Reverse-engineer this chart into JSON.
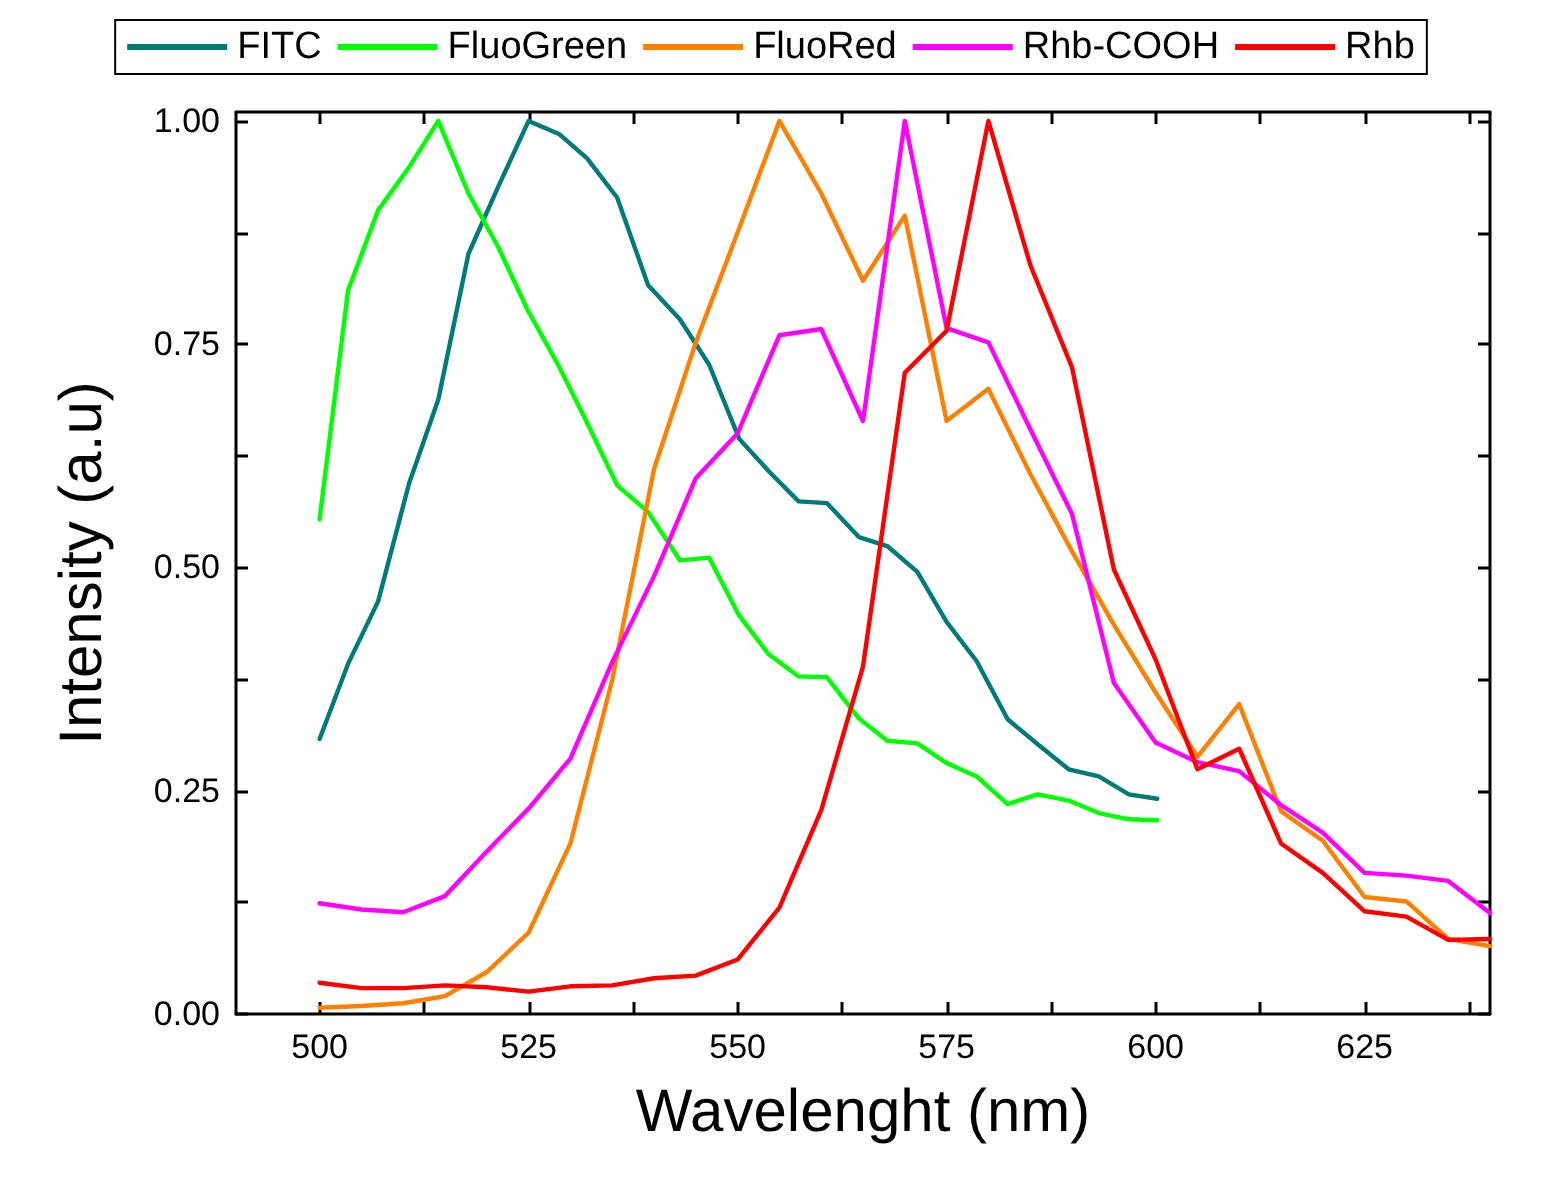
{
  "chart_data": {
    "type": "line",
    "xlabel": "Wavelenght (nm)",
    "ylabel": "Intensity (a.u)",
    "xlim": [
      490,
      640
    ],
    "xticks": [
      500,
      {
        "value": 512.5,
        "label": null
      },
      525,
      {
        "value": 537.5,
        "label": null
      },
      550,
      {
        "value": 562.5,
        "label": null
      },
      575,
      {
        "value": 587.5,
        "label": null
      },
      600,
      {
        "value": 612.5,
        "label": null
      },
      625,
      {
        "value": 637.5,
        "label": null
      }
    ],
    "ylim": [
      0,
      1.01
    ],
    "yticks": [
      {
        "value": 0,
        "label": "0.00"
      },
      {
        "value": 0.125,
        "label": null
      },
      {
        "value": 0.25,
        "label": "0.25"
      },
      {
        "value": 0.375,
        "label": null
      },
      {
        "value": 0.5,
        "label": "0.50"
      },
      {
        "value": 0.625,
        "label": null
      },
      {
        "value": 0.75,
        "label": "0.75"
      },
      {
        "value": 0.875,
        "label": null
      },
      {
        "value": 1,
        "label": "1.00"
      }
    ],
    "grid": false,
    "legend": "top",
    "marker": "none",
    "line_style": "solid",
    "series": [
      {
        "name": "FITC",
        "color": "#007b7b",
        "x": [
          500,
          503.4,
          507,
          510.7,
          514.2,
          517.8,
          521.3,
          525,
          528.7,
          532,
          535.6,
          539.3,
          543.1,
          546.6,
          550.2,
          553.7,
          557.3,
          560.7,
          564.5,
          567.9,
          571.5,
          575,
          578.6,
          582.3,
          585.9,
          589.6,
          593.2,
          596.8,
          600.2
        ],
        "values": [
          0.308,
          0.392,
          0.462,
          0.594,
          0.688,
          0.851,
          0.925,
          1.0,
          0.985,
          0.958,
          0.914,
          0.816,
          0.778,
          0.727,
          0.644,
          0.608,
          0.574,
          0.572,
          0.534,
          0.524,
          0.495,
          0.439,
          0.395,
          0.33,
          0.302,
          0.274,
          0.266,
          0.246,
          0.241
        ]
      },
      {
        "name": "FluoGreen",
        "color": "#00ff00",
        "x": [
          500,
          503.4,
          507,
          510.7,
          514.2,
          517.8,
          521.3,
          524.9,
          528.7,
          532,
          535.6,
          539.3,
          543.1,
          546.6,
          550.2,
          553.7,
          557.3,
          560.7,
          564.5,
          567.9,
          571.5,
          575,
          578.6,
          582.3,
          585.9,
          589.6,
          593.2,
          596.8,
          600.2
        ],
        "values": [
          0.554,
          0.81,
          0.9,
          0.948,
          1.0,
          0.919,
          0.86,
          0.788,
          0.724,
          0.662,
          0.592,
          0.562,
          0.508,
          0.511,
          0.446,
          0.403,
          0.378,
          0.377,
          0.331,
          0.306,
          0.303,
          0.281,
          0.266,
          0.235,
          0.246,
          0.239,
          0.225,
          0.218,
          0.217
        ]
      },
      {
        "name": "FluoRed",
        "color": "#ff8000",
        "x": [
          500,
          505,
          510,
          515,
          520,
          525,
          530,
          535,
          540,
          545,
          550,
          555,
          560,
          565,
          570,
          575,
          580,
          585,
          590,
          595,
          600,
          605,
          610,
          615,
          620,
          625,
          630,
          635,
          640
        ],
        "values": [
          0.007,
          0.009,
          0.012,
          0.02,
          0.047,
          0.091,
          0.191,
          0.374,
          0.61,
          0.752,
          0.875,
          1.0,
          0.919,
          0.821,
          0.894,
          0.664,
          0.7,
          0.605,
          0.518,
          0.436,
          0.36,
          0.288,
          0.347,
          0.227,
          0.194,
          0.131,
          0.126,
          0.084,
          0.076
        ]
      },
      {
        "name": "Rhb-COOH",
        "color": "#ff00ff",
        "x": [
          500,
          505,
          510,
          515,
          520,
          525,
          530,
          535,
          540,
          545,
          550,
          555,
          560,
          565,
          570,
          575,
          580,
          585,
          590,
          595,
          600,
          605,
          610,
          615,
          620,
          625,
          630,
          635,
          640
        ],
        "values": [
          0.124,
          0.117,
          0.114,
          0.132,
          0.182,
          0.23,
          0.286,
          0.394,
          0.49,
          0.6,
          0.65,
          0.76,
          0.767,
          0.664,
          1.0,
          0.768,
          0.752,
          0.655,
          0.56,
          0.371,
          0.304,
          0.282,
          0.272,
          0.234,
          0.203,
          0.158,
          0.155,
          0.149,
          0.113
        ]
      },
      {
        "name": "Rhb",
        "color": "#ff0000",
        "x": [
          500,
          505,
          510,
          515,
          520,
          525,
          530,
          535,
          540,
          545,
          550,
          555,
          560,
          565,
          570,
          575,
          580,
          585,
          590,
          595,
          600,
          605,
          610,
          615,
          620,
          625,
          630,
          635,
          640
        ],
        "values": [
          0.035,
          0.029,
          0.029,
          0.032,
          0.03,
          0.025,
          0.031,
          0.032,
          0.04,
          0.043,
          0.061,
          0.119,
          0.228,
          0.389,
          0.718,
          0.765,
          1.0,
          0.839,
          0.724,
          0.498,
          0.397,
          0.274,
          0.297,
          0.191,
          0.158,
          0.115,
          0.109,
          0.083,
          0.084
        ]
      }
    ]
  }
}
